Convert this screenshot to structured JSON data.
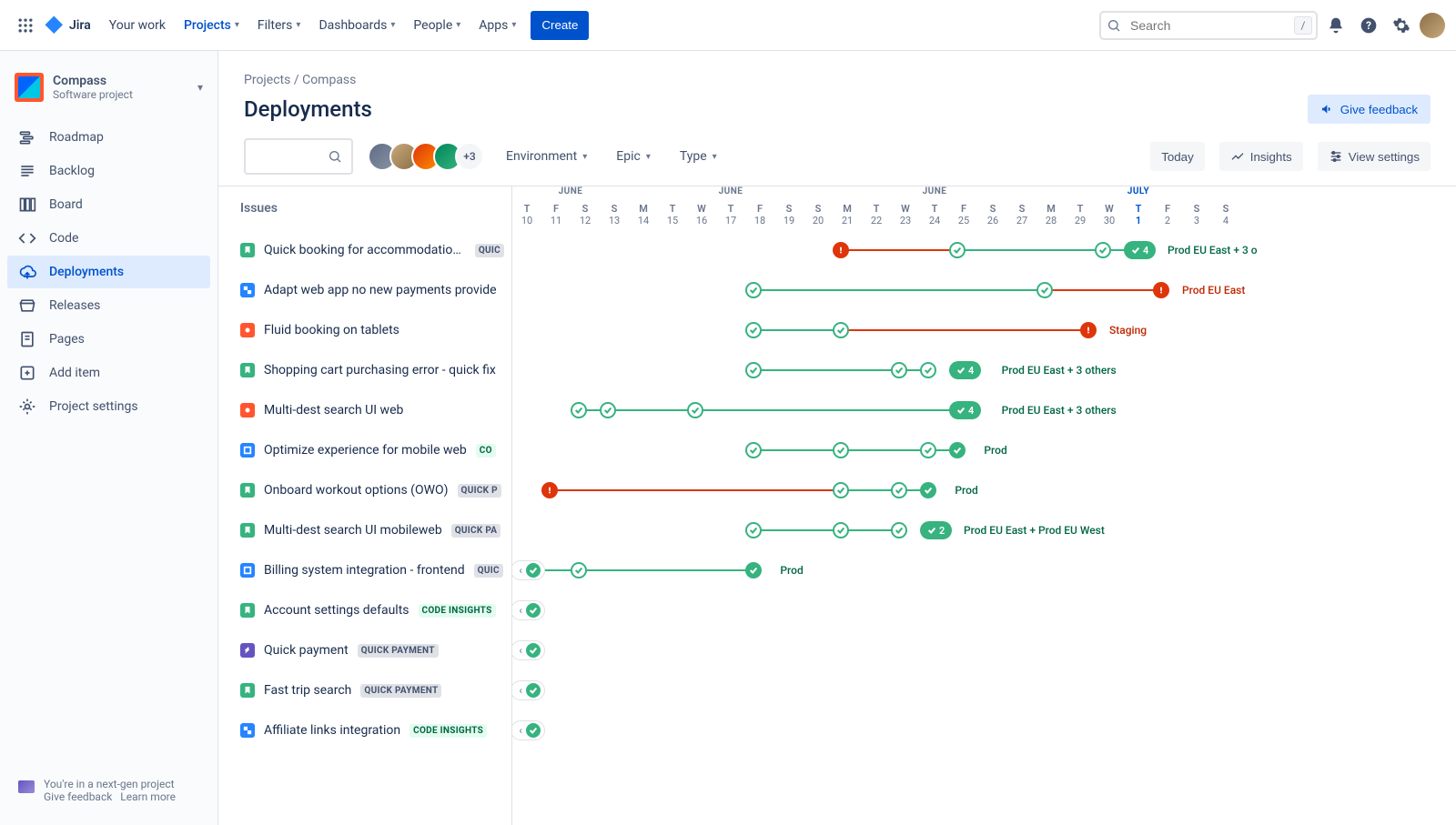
{
  "topnav": {
    "logo": "Jira",
    "items": [
      "Your work",
      "Projects",
      "Filters",
      "Dashboards",
      "People",
      "Apps"
    ],
    "active_index": 1,
    "create": "Create",
    "search_placeholder": "Search"
  },
  "sidebar": {
    "project_name": "Compass",
    "project_sub": "Software project",
    "items": [
      {
        "icon": "roadmap",
        "label": "Roadmap"
      },
      {
        "icon": "backlog",
        "label": "Backlog"
      },
      {
        "icon": "board",
        "label": "Board"
      },
      {
        "icon": "code",
        "label": "Code"
      },
      {
        "icon": "deployments",
        "label": "Deployments",
        "active": true
      },
      {
        "icon": "releases",
        "label": "Releases"
      },
      {
        "icon": "pages",
        "label": "Pages"
      },
      {
        "icon": "add",
        "label": "Add item"
      },
      {
        "icon": "settings",
        "label": "Project settings"
      }
    ],
    "footer_line": "You're in a next-gen project",
    "footer_feedback": "Give feedback",
    "footer_learn": "Learn more"
  },
  "breadcrumb": {
    "projects": "Projects",
    "sep": " / ",
    "project": "Compass"
  },
  "page_title": "Deployments",
  "feedback_btn": "Give feedback",
  "filters": {
    "avatar_more": "+3",
    "env": "Environment",
    "epic": "Epic",
    "type": "Type",
    "today": "Today",
    "insights": "Insights",
    "view_settings": "View settings"
  },
  "issues_header": "Issues",
  "timeline": {
    "day_width": 32,
    "months": [
      {
        "label": "JUNE",
        "span": 4,
        "cls": ""
      },
      {
        "label": "JUNE",
        "span": 7,
        "cls": ""
      },
      {
        "label": "JUNE",
        "span": 7,
        "cls": ""
      },
      {
        "label": "JULY",
        "span": 7,
        "cls": "july"
      }
    ],
    "days": [
      {
        "dow": "T",
        "num": "10"
      },
      {
        "dow": "F",
        "num": "11"
      },
      {
        "dow": "S",
        "num": "12"
      },
      {
        "dow": "S",
        "num": "13"
      },
      {
        "dow": "M",
        "num": "14"
      },
      {
        "dow": "T",
        "num": "15"
      },
      {
        "dow": "W",
        "num": "16"
      },
      {
        "dow": "T",
        "num": "17"
      },
      {
        "dow": "F",
        "num": "18"
      },
      {
        "dow": "S",
        "num": "19"
      },
      {
        "dow": "S",
        "num": "20"
      },
      {
        "dow": "M",
        "num": "21"
      },
      {
        "dow": "T",
        "num": "22"
      },
      {
        "dow": "W",
        "num": "23"
      },
      {
        "dow": "T",
        "num": "24"
      },
      {
        "dow": "F",
        "num": "25"
      },
      {
        "dow": "S",
        "num": "26"
      },
      {
        "dow": "S",
        "num": "27"
      },
      {
        "dow": "M",
        "num": "28"
      },
      {
        "dow": "T",
        "num": "29"
      },
      {
        "dow": "W",
        "num": "30"
      },
      {
        "dow": "T",
        "num": "1",
        "today": true
      },
      {
        "dow": "F",
        "num": "2"
      },
      {
        "dow": "S",
        "num": "3"
      },
      {
        "dow": "S",
        "num": "4"
      }
    ]
  },
  "issues": [
    {
      "type": "story",
      "title": "Quick booking for accommodations",
      "lozenge": "QUIC",
      "loz_cls": "",
      "segments": [
        {
          "from": 11,
          "to": 15,
          "color": "red"
        },
        {
          "from": 15,
          "to": 20,
          "color": "green"
        },
        {
          "from": 20,
          "to": 21,
          "color": "green"
        }
      ],
      "nodes": [
        {
          "at": 11,
          "kind": "fail"
        },
        {
          "at": 15,
          "kind": "success"
        },
        {
          "at": 20,
          "kind": "success"
        }
      ],
      "badge": {
        "at": 21,
        "text": "4"
      },
      "label": {
        "at": 22.5,
        "text": "Prod EU East + 3 o",
        "cls": "green"
      }
    },
    {
      "type": "sub",
      "title": "Adapt web app no new payments provide",
      "lozenge": null,
      "segments": [
        {
          "from": 8,
          "to": 18,
          "color": "green"
        },
        {
          "from": 18,
          "to": 22,
          "color": "red"
        }
      ],
      "nodes": [
        {
          "at": 8,
          "kind": "success"
        },
        {
          "at": 18,
          "kind": "success"
        },
        {
          "at": 22,
          "kind": "fail"
        }
      ],
      "label": {
        "at": 23,
        "text": "Prod EU East",
        "cls": "red"
      }
    },
    {
      "type": "bug",
      "title": "Fluid booking on tablets",
      "lozenge": null,
      "segments": [
        {
          "from": 8,
          "to": 11,
          "color": "green"
        },
        {
          "from": 11,
          "to": 19.5,
          "color": "red"
        }
      ],
      "nodes": [
        {
          "at": 8,
          "kind": "success"
        },
        {
          "at": 11,
          "kind": "success"
        },
        {
          "at": 19.5,
          "kind": "fail"
        }
      ],
      "label": {
        "at": 20.5,
        "text": "Staging",
        "cls": "red"
      }
    },
    {
      "type": "story",
      "title": "Shopping cart purchasing error - quick fix",
      "lozenge": null,
      "segments": [
        {
          "from": 8,
          "to": 13,
          "color": "green"
        },
        {
          "from": 13,
          "to": 14,
          "color": "green"
        }
      ],
      "nodes": [
        {
          "at": 8,
          "kind": "success"
        },
        {
          "at": 13,
          "kind": "success"
        },
        {
          "at": 14,
          "kind": "success"
        }
      ],
      "badge": {
        "at": 15,
        "text": "4"
      },
      "label": {
        "at": 16.8,
        "text": "Prod EU East + 3 others",
        "cls": "green"
      }
    },
    {
      "type": "bug",
      "title": "Multi-dest search UI web",
      "lozenge": null,
      "segments": [
        {
          "from": 2,
          "to": 3,
          "color": "green"
        },
        {
          "from": 3,
          "to": 6,
          "color": "green"
        },
        {
          "from": 6,
          "to": 15,
          "color": "green"
        }
      ],
      "nodes": [
        {
          "at": 2,
          "kind": "success"
        },
        {
          "at": 3,
          "kind": "success"
        },
        {
          "at": 6,
          "kind": "success"
        }
      ],
      "badge": {
        "at": 15,
        "text": "4"
      },
      "label": {
        "at": 16.8,
        "text": "Prod EU East + 3 others",
        "cls": "green"
      }
    },
    {
      "type": "task",
      "title": "Optimize experience for mobile web",
      "lozenge": "CO",
      "loz_cls": "loz-green",
      "segments": [
        {
          "from": 8,
          "to": 11,
          "color": "green"
        },
        {
          "from": 11,
          "to": 14,
          "color": "green"
        },
        {
          "from": 14,
          "to": 15,
          "color": "green"
        }
      ],
      "nodes": [
        {
          "at": 8,
          "kind": "success"
        },
        {
          "at": 11,
          "kind": "success"
        },
        {
          "at": 14,
          "kind": "success"
        },
        {
          "at": 15,
          "kind": "fill"
        }
      ],
      "label": {
        "at": 16.2,
        "text": "Prod",
        "cls": "green"
      }
    },
    {
      "type": "story",
      "title": "Onboard workout options (OWO)",
      "lozenge": "QUICK P",
      "loz_cls": "",
      "segments": [
        {
          "from": 1,
          "to": 11,
          "color": "red"
        },
        {
          "from": 11,
          "to": 13,
          "color": "green"
        },
        {
          "from": 13,
          "to": 14,
          "color": "green"
        }
      ],
      "nodes": [
        {
          "at": 1,
          "kind": "fail"
        },
        {
          "at": 11,
          "kind": "success"
        },
        {
          "at": 13,
          "kind": "success"
        },
        {
          "at": 14,
          "kind": "fill"
        }
      ],
      "label": {
        "at": 15.2,
        "text": "Prod",
        "cls": "green"
      }
    },
    {
      "type": "story",
      "title": "Multi-dest search UI mobileweb",
      "lozenge": "QUICK PA",
      "loz_cls": "",
      "segments": [
        {
          "from": 8,
          "to": 11,
          "color": "green"
        },
        {
          "from": 11,
          "to": 13,
          "color": "green"
        }
      ],
      "nodes": [
        {
          "at": 8,
          "kind": "success"
        },
        {
          "at": 11,
          "kind": "success"
        },
        {
          "at": 13,
          "kind": "success"
        }
      ],
      "badge": {
        "at": 14,
        "text": "2"
      },
      "label": {
        "at": 15.5,
        "text": "Prod EU East + Prod EU West",
        "cls": "green"
      }
    },
    {
      "type": "task",
      "title": "Billing system integration - frontend",
      "lozenge": "QUIC",
      "loz_cls": "",
      "segments": [
        {
          "from": 0.5,
          "to": 2,
          "color": "green"
        },
        {
          "from": 2,
          "to": 8,
          "color": "green"
        }
      ],
      "nodes": [
        {
          "at": 2,
          "kind": "success"
        },
        {
          "at": 8,
          "kind": "fill"
        }
      ],
      "collapse": {
        "at": -0.3
      },
      "label": {
        "at": 9.2,
        "text": "Prod",
        "cls": "green"
      }
    },
    {
      "type": "story",
      "title": "Account settings defaults",
      "lozenge": "CODE INSIGHTS",
      "loz_cls": "loz-green",
      "collapse": {
        "at": -0.3
      }
    },
    {
      "type": "epic",
      "title": "Quick payment",
      "lozenge": "QUICK PAYMENT",
      "loz_cls": "",
      "collapse": {
        "at": -0.3
      }
    },
    {
      "type": "story",
      "title": "Fast trip search",
      "lozenge": "QUICK PAYMENT",
      "loz_cls": "",
      "collapse": {
        "at": -0.3
      }
    },
    {
      "type": "sub",
      "title": "Affiliate links integration",
      "lozenge": "CODE INSIGHTS",
      "loz_cls": "loz-green",
      "collapse": {
        "at": -0.3
      }
    }
  ],
  "colors": {
    "green": "#36B37E",
    "red": "#DE350B",
    "blue": "#0052CC"
  }
}
